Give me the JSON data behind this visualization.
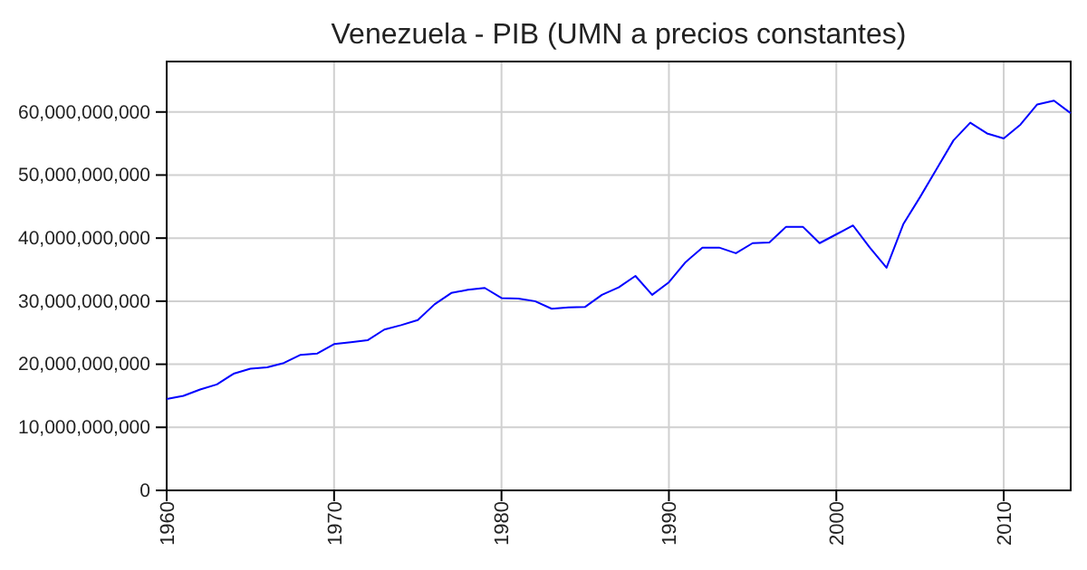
{
  "chart_data": {
    "type": "line",
    "title": "Venezuela - PIB (UMN a precios constantes)",
    "x": [
      1960,
      1961,
      1962,
      1963,
      1964,
      1965,
      1966,
      1967,
      1968,
      1969,
      1970,
      1971,
      1972,
      1973,
      1974,
      1975,
      1976,
      1977,
      1978,
      1979,
      1980,
      1981,
      1982,
      1983,
      1984,
      1985,
      1986,
      1987,
      1988,
      1989,
      1990,
      1991,
      1992,
      1993,
      1994,
      1995,
      1996,
      1997,
      1998,
      1999,
      2000,
      2001,
      2002,
      2003,
      2004,
      2005,
      2006,
      2007,
      2008,
      2009,
      2010,
      2011,
      2012,
      2013,
      2014
    ],
    "series": [
      {
        "color": "#0000ff",
        "values": [
          14500000000,
          15000000000,
          16000000000,
          16800000000,
          18500000000,
          19300000000,
          19500000000,
          20200000000,
          21500000000,
          21700000000,
          23200000000,
          23500000000,
          23800000000,
          25500000000,
          26200000000,
          27000000000,
          29500000000,
          31300000000,
          31800000000,
          32100000000,
          30500000000,
          30400000000,
          30000000000,
          28800000000,
          29000000000,
          29100000000,
          31000000000,
          32200000000,
          34000000000,
          31000000000,
          33000000000,
          36200000000,
          38500000000,
          38500000000,
          37600000000,
          39200000000,
          39300000000,
          41800000000,
          41800000000,
          39200000000,
          40600000000,
          42000000000,
          38500000000,
          35300000000,
          42200000000,
          46500000000,
          51000000000,
          55500000000,
          58300000000,
          56600000000,
          55800000000,
          58000000000,
          61200000000,
          61800000000,
          59800000000
        ]
      }
    ],
    "xlim": [
      1960,
      2014
    ],
    "xticks": [
      1960,
      1970,
      1980,
      1990,
      2000,
      2010
    ],
    "ylim": [
      0,
      68000000000
    ],
    "yticks": [
      {
        "value": 0,
        "label": "0"
      },
      {
        "value": 10000000000,
        "label": "10,000,000,000"
      },
      {
        "value": 20000000000,
        "label": "20,000,000,000"
      },
      {
        "value": 30000000000,
        "label": "30,000,000,000"
      },
      {
        "value": 40000000000,
        "label": "40,000,000,000"
      },
      {
        "value": 50000000000,
        "label": "50,000,000,000"
      },
      {
        "value": 60000000000,
        "label": "60,000,000,000"
      }
    ],
    "grid": true
  }
}
